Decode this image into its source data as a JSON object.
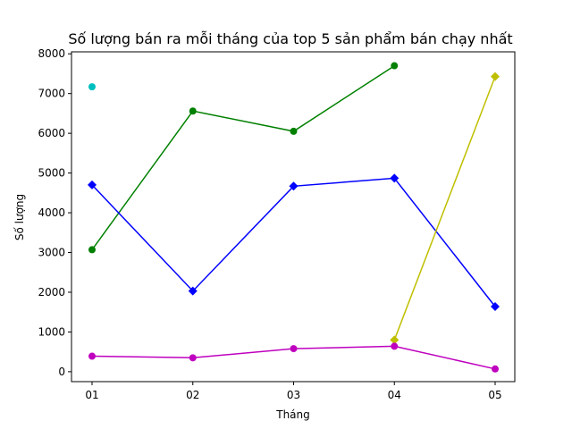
{
  "chart_data": {
    "type": "line",
    "title": "Số lượng bán ra mỗi tháng của top 5 sản phẩm bán chạy nhất",
    "xlabel": "Tháng",
    "ylabel": "Số lượng",
    "categories": [
      "01",
      "02",
      "03",
      "04",
      "05"
    ],
    "ylim": [
      -250,
      8050
    ],
    "yticks": [
      0,
      1000,
      2000,
      3000,
      4000,
      5000,
      6000,
      7000,
      8000
    ],
    "grid": false,
    "legend": "none",
    "series": [
      {
        "color": "#00bfbf",
        "marker": "circle",
        "values": [
          7170,
          null,
          null,
          null,
          null
        ]
      },
      {
        "color": "#008000",
        "marker": "circle",
        "values": [
          3070,
          6560,
          6050,
          7700,
          null
        ]
      },
      {
        "color": "#0000ff",
        "marker": "diamond",
        "values": [
          4700,
          2030,
          4670,
          4870,
          1640
        ]
      },
      {
        "color": "#bfbf00",
        "marker": "diamond",
        "values": [
          null,
          null,
          null,
          800,
          7430
        ]
      },
      {
        "color": "#bf00bf",
        "marker": "circle",
        "values": [
          390,
          350,
          580,
          640,
          70
        ]
      }
    ]
  }
}
